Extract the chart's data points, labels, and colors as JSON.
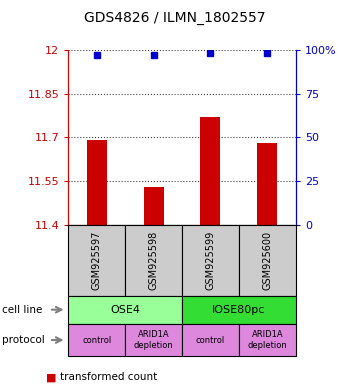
{
  "title": "GDS4826 / ILMN_1802557",
  "samples": [
    "GSM925597",
    "GSM925598",
    "GSM925599",
    "GSM925600"
  ],
  "bar_values": [
    11.69,
    11.53,
    11.77,
    11.68
  ],
  "percentile_values": [
    97,
    97,
    98,
    98
  ],
  "y_min": 11.4,
  "y_max": 12.0,
  "y_ticks_left": [
    11.4,
    11.55,
    11.7,
    11.85,
    12.0
  ],
  "y_tick_labels_left": [
    "11.4",
    "11.55",
    "11.7",
    "11.85",
    "12"
  ],
  "y_ticks_right": [
    0,
    25,
    50,
    75,
    100
  ],
  "y_tick_labels_right": [
    "0",
    "25",
    "50",
    "75",
    "100%"
  ],
  "bar_color": "#cc0000",
  "dot_color": "#0000cc",
  "bar_width": 0.35,
  "cell_line_labels": [
    "OSE4",
    "IOSE80pc"
  ],
  "cell_line_colors": [
    "#99ff99",
    "#33dd33"
  ],
  "cell_line_spans": [
    [
      0,
      2
    ],
    [
      2,
      4
    ]
  ],
  "protocol_labels": [
    "control",
    "ARID1A\ndepletion",
    "control",
    "ARID1A\ndepletion"
  ],
  "protocol_color": "#dd88dd",
  "sample_box_color": "#cccccc",
  "dotted_color": "#444444",
  "label_color_left": "#cc0000",
  "label_color_right": "#0000cc"
}
